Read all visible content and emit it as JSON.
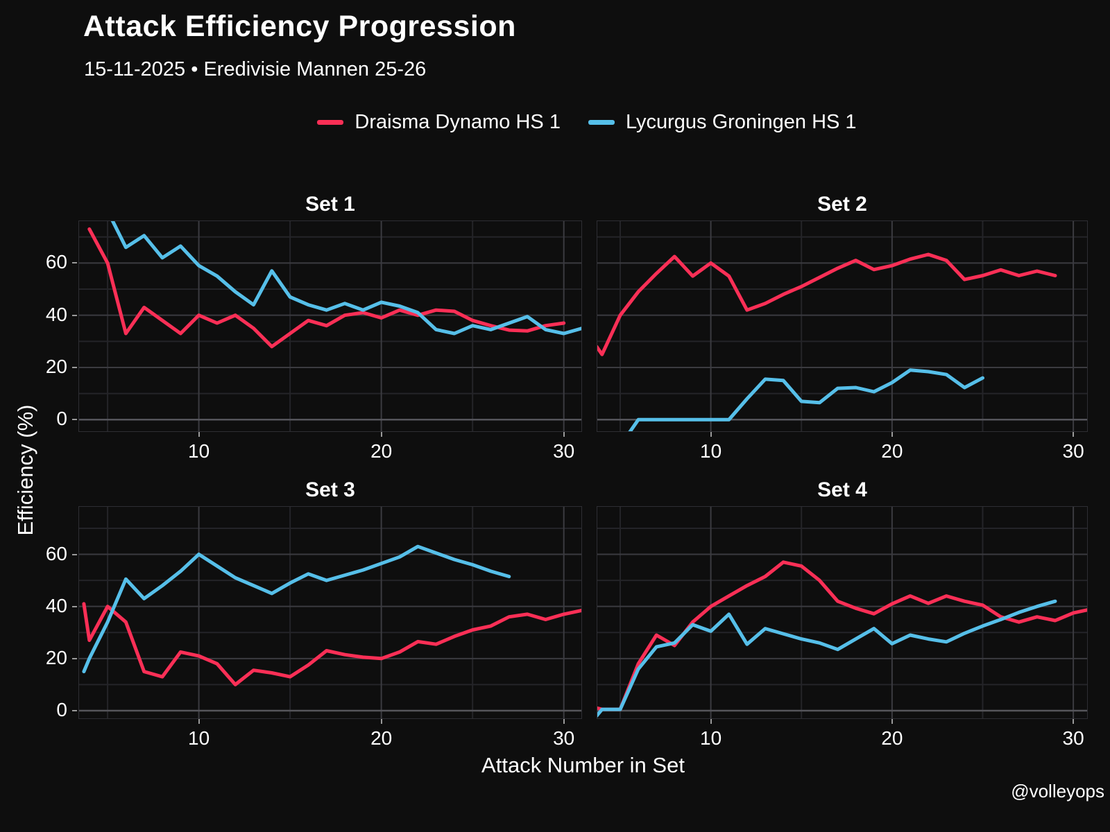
{
  "header": {
    "title": "Attack Efficiency Progression",
    "subtitle": "15-11-2025 • Eredivisie Mannen 25-26"
  },
  "legend": [
    {
      "label": "Draisma Dynamo HS 1",
      "color": "#fb2f56"
    },
    {
      "label": "Lycurgus Groningen HS 1",
      "color": "#56bfe9"
    }
  ],
  "axis": {
    "y_title": "Efficiency (%)",
    "x_title": "Attack Number in Set"
  },
  "footer": {
    "handle": "@volleyops"
  },
  "chart_data": [
    {
      "type": "line",
      "title": "Set 1",
      "xlabel": "Attack Number in Set",
      "ylabel": "Efficiency (%)",
      "xlim": [
        3.4,
        31.0
      ],
      "ylim": [
        -4.7,
        76.3
      ],
      "x_ticks": [
        10,
        20,
        30
      ],
      "x_minor_ticks": [
        5,
        15,
        25
      ],
      "y_ticks": [
        0,
        20,
        40,
        60
      ],
      "y_minor_ticks": [
        10,
        30,
        50,
        70
      ],
      "show_y_labels": true,
      "grid": true,
      "series": [
        {
          "name": "Draisma Dynamo HS 1",
          "color": "#fb2f56",
          "points": [
            [
              4,
              73
            ],
            [
              5,
              60
            ],
            [
              6,
              33
            ],
            [
              7,
              43
            ],
            [
              8,
              38
            ],
            [
              9,
              33
            ],
            [
              10,
              40
            ],
            [
              11,
              37
            ],
            [
              12,
              40
            ],
            [
              13,
              35
            ],
            [
              14,
              28
            ],
            [
              15,
              33
            ],
            [
              16,
              38
            ],
            [
              17,
              36
            ],
            [
              18,
              40
            ],
            [
              19,
              41
            ],
            [
              20,
              39
            ],
            [
              21,
              42
            ],
            [
              22,
              40
            ],
            [
              23,
              42
            ],
            [
              24,
              41.5
            ],
            [
              25,
              38
            ],
            [
              26,
              36
            ],
            [
              27,
              34.3
            ],
            [
              28,
              34
            ],
            [
              29,
              36
            ],
            [
              30,
              37
            ]
          ]
        },
        {
          "name": "Lycurgus Groningen HS 1",
          "color": "#56bfe9",
          "points": [
            [
              5,
              80
            ],
            [
              6,
              66
            ],
            [
              7,
              70.5
            ],
            [
              8,
              62
            ],
            [
              9,
              66.5
            ],
            [
              10,
              59
            ],
            [
              11,
              55
            ],
            [
              12,
              49
            ],
            [
              13,
              44
            ],
            [
              14,
              57
            ],
            [
              15,
              47
            ],
            [
              16,
              44
            ],
            [
              17,
              42
            ],
            [
              18,
              44.5
            ],
            [
              19,
              42
            ],
            [
              20,
              45
            ],
            [
              21,
              43.5
            ],
            [
              22,
              41
            ],
            [
              23,
              34.5
            ],
            [
              24,
              33
            ],
            [
              25,
              36
            ],
            [
              26,
              34.5
            ],
            [
              27,
              37
            ],
            [
              28,
              39.5
            ],
            [
              29,
              34.5
            ],
            [
              30,
              33
            ],
            [
              31,
              35
            ]
          ]
        }
      ]
    },
    {
      "type": "line",
      "title": "Set 2",
      "xlabel": "Attack Number in Set",
      "ylabel": "Efficiency (%)",
      "xlim": [
        3.7,
        30.8
      ],
      "ylim": [
        -4.7,
        76.3
      ],
      "x_ticks": [
        10,
        20,
        30
      ],
      "x_minor_ticks": [
        5,
        15,
        25
      ],
      "y_ticks": [
        0,
        20,
        40,
        60
      ],
      "y_minor_ticks": [
        10,
        30,
        50,
        70
      ],
      "show_y_labels": false,
      "grid": true,
      "series": [
        {
          "name": "Draisma Dynamo HS 1",
          "color": "#fb2f56",
          "points": [
            [
              3.7,
              28
            ],
            [
              4,
              25
            ],
            [
              5,
              40
            ],
            [
              6,
              49
            ],
            [
              7,
              56
            ],
            [
              8,
              62.5
            ],
            [
              9,
              55
            ],
            [
              10,
              60
            ],
            [
              11,
              55
            ],
            [
              12,
              42
            ],
            [
              13,
              44.5
            ],
            [
              14,
              48
            ],
            [
              15,
              51
            ],
            [
              16,
              54.5
            ],
            [
              17,
              58
            ],
            [
              18,
              61
            ],
            [
              19,
              57.5
            ],
            [
              20,
              59
            ],
            [
              21,
              61.5
            ],
            [
              22,
              63.3
            ],
            [
              23,
              61
            ],
            [
              24,
              53.7
            ],
            [
              25,
              55.2
            ],
            [
              26,
              57.4
            ],
            [
              27,
              55.2
            ],
            [
              28,
              56.9
            ],
            [
              29,
              55.2
            ]
          ]
        },
        {
          "name": "Lycurgus Groningen HS 1",
          "color": "#56bfe9",
          "points": [
            [
              5,
              -10
            ],
            [
              6,
              0
            ],
            [
              7,
              0
            ],
            [
              8,
              0
            ],
            [
              9,
              0
            ],
            [
              10,
              0
            ],
            [
              11,
              0
            ],
            [
              12,
              8
            ],
            [
              13,
              15.5
            ],
            [
              14,
              15
            ],
            [
              15,
              7
            ],
            [
              16,
              6.5
            ],
            [
              17,
              12
            ],
            [
              18,
              12.3
            ],
            [
              19,
              10.7
            ],
            [
              20,
              14.2
            ],
            [
              21,
              19
            ],
            [
              22,
              18.4
            ],
            [
              23,
              17.3
            ],
            [
              24,
              12.3
            ],
            [
              25,
              16
            ]
          ]
        }
      ]
    },
    {
      "type": "line",
      "title": "Set 3",
      "xlabel": "Attack Number in Set",
      "ylabel": "Efficiency (%)",
      "xlim": [
        3.4,
        31.0
      ],
      "ylim": [
        -3.2,
        78.5
      ],
      "x_ticks": [
        10,
        20,
        30
      ],
      "x_minor_ticks": [
        5,
        15,
        25
      ],
      "y_ticks": [
        0,
        20,
        40,
        60
      ],
      "y_minor_ticks": [
        10,
        30,
        50,
        70
      ],
      "show_y_labels": true,
      "grid": true,
      "series": [
        {
          "name": "Draisma Dynamo HS 1",
          "color": "#fb2f56",
          "points": [
            [
              3.7,
              41
            ],
            [
              4,
              27
            ],
            [
              5,
              40
            ],
            [
              6,
              34
            ],
            [
              7,
              15
            ],
            [
              8,
              13
            ],
            [
              9,
              22.5
            ],
            [
              10,
              21
            ],
            [
              11,
              18
            ],
            [
              12,
              10
            ],
            [
              13,
              15.5
            ],
            [
              14,
              14.5
            ],
            [
              15,
              13
            ],
            [
              16,
              17.5
            ],
            [
              17,
              23
            ],
            [
              18,
              21.5
            ],
            [
              19,
              20.5
            ],
            [
              20,
              20
            ],
            [
              21,
              22.5
            ],
            [
              22,
              26.5
            ],
            [
              23,
              25.5
            ],
            [
              24,
              28.5
            ],
            [
              25,
              31
            ],
            [
              26,
              32.5
            ],
            [
              27,
              36
            ],
            [
              28,
              37
            ],
            [
              29,
              35
            ],
            [
              30,
              37
            ],
            [
              31,
              38.5
            ]
          ]
        },
        {
          "name": "Lycurgus Groningen HS 1",
          "color": "#56bfe9",
          "points": [
            [
              3.7,
              15
            ],
            [
              4,
              20
            ],
            [
              5,
              34
            ],
            [
              6,
              50.5
            ],
            [
              7,
              43
            ],
            [
              8,
              48
            ],
            [
              9,
              53.5
            ],
            [
              10,
              60
            ],
            [
              11,
              55.5
            ],
            [
              12,
              51
            ],
            [
              13,
              48
            ],
            [
              14,
              45
            ],
            [
              15,
              49
            ],
            [
              16,
              52.5
            ],
            [
              17,
              50
            ],
            [
              18,
              52
            ],
            [
              19,
              54
            ],
            [
              20,
              56.5
            ],
            [
              21,
              59
            ],
            [
              22,
              63
            ],
            [
              23,
              60.5
            ],
            [
              24,
              58
            ],
            [
              25,
              56
            ],
            [
              26,
              53.5
            ],
            [
              27,
              51.5
            ]
          ]
        }
      ]
    },
    {
      "type": "line",
      "title": "Set 4",
      "xlabel": "Attack Number in Set",
      "ylabel": "Efficiency (%)",
      "xlim": [
        3.7,
        30.8
      ],
      "ylim": [
        -3.2,
        78.5
      ],
      "x_ticks": [
        10,
        20,
        30
      ],
      "x_minor_ticks": [
        5,
        15,
        25
      ],
      "y_ticks": [
        0,
        20,
        40,
        60
      ],
      "y_minor_ticks": [
        10,
        30,
        50,
        70
      ],
      "show_y_labels": false,
      "grid": true,
      "series": [
        {
          "name": "Draisma Dynamo HS 1",
          "color": "#fb2f56",
          "points": [
            [
              3.7,
              1
            ],
            [
              4,
              0.5
            ],
            [
              5,
              0.5
            ],
            [
              6,
              18
            ],
            [
              7,
              29
            ],
            [
              8,
              25
            ],
            [
              9,
              34
            ],
            [
              10,
              40
            ],
            [
              11,
              44
            ],
            [
              12,
              48
            ],
            [
              13,
              51.5
            ],
            [
              14,
              57
            ],
            [
              15,
              55.5
            ],
            [
              16,
              50
            ],
            [
              17,
              42
            ],
            [
              18,
              39.3
            ],
            [
              19,
              37.2
            ],
            [
              20,
              41
            ],
            [
              21,
              44
            ],
            [
              22,
              41.2
            ],
            [
              23,
              44
            ],
            [
              24,
              42
            ],
            [
              25,
              40.5
            ],
            [
              26,
              36
            ],
            [
              27,
              34
            ],
            [
              28,
              36
            ],
            [
              29,
              34.6
            ],
            [
              30,
              37.5
            ],
            [
              31,
              39
            ]
          ]
        },
        {
          "name": "Lycurgus Groningen HS 1",
          "color": "#56bfe9",
          "points": [
            [
              3.7,
              -2
            ],
            [
              4,
              0.5
            ],
            [
              5,
              0.5
            ],
            [
              6,
              16
            ],
            [
              7,
              24.5
            ],
            [
              8,
              26
            ],
            [
              9,
              33
            ],
            [
              10,
              30.5
            ],
            [
              11,
              37
            ],
            [
              12,
              25.5
            ],
            [
              13,
              31.5
            ],
            [
              14,
              29.5
            ],
            [
              15,
              27.5
            ],
            [
              16,
              26
            ],
            [
              17,
              23.5
            ],
            [
              18,
              27.5
            ],
            [
              19,
              31.5
            ],
            [
              20,
              25.7
            ],
            [
              21,
              29
            ],
            [
              22,
              27.5
            ],
            [
              23,
              26.4
            ],
            [
              24,
              29.7
            ],
            [
              25,
              32.5
            ],
            [
              26,
              35
            ],
            [
              27,
              37.7
            ],
            [
              28,
              40
            ],
            [
              29,
              42
            ]
          ]
        }
      ]
    }
  ]
}
